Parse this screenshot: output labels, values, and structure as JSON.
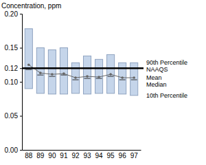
{
  "chart_data": {
    "type": "box",
    "title": "Concentration, ppm",
    "categories": [
      "88",
      "89",
      "90",
      "91",
      "92",
      "93",
      "94",
      "95",
      "96",
      "97"
    ],
    "color": "#c5d5ea",
    "series": [
      {
        "name": "90th Percentile",
        "type": "upper",
        "values": [
          0.178,
          0.15,
          0.147,
          0.15,
          0.128,
          0.138,
          0.133,
          0.14,
          0.128,
          0.128
        ]
      },
      {
        "name": "Mean",
        "type": "line",
        "color": "#666666",
        "marker": "circle",
        "values": [
          0.125,
          0.113,
          0.111,
          0.112,
          0.106,
          0.108,
          0.107,
          0.111,
          0.106,
          0.106
        ]
      },
      {
        "name": "Median",
        "type": "median",
        "color": "#333333",
        "values": [
          0.118,
          0.11,
          0.108,
          0.11,
          0.103,
          0.105,
          0.105,
          0.108,
          0.103,
          0.103
        ]
      },
      {
        "name": "10th Percentile",
        "type": "lower",
        "values": [
          0.09,
          0.083,
          0.082,
          0.082,
          0.083,
          0.082,
          0.083,
          0.083,
          0.082,
          0.08
        ]
      }
    ],
    "reference_lines": [
      {
        "value": 0.12,
        "label": "NAAQS",
        "color": "#000000"
      }
    ],
    "ylim": [
      0,
      0.2
    ],
    "yticks": [
      {
        "value": 0,
        "label": "0.00"
      },
      {
        "value": 0.05,
        "label": "0.05"
      },
      {
        "value": 0.1,
        "label": "0.10"
      },
      {
        "value": 0.12,
        "label": "0.12"
      },
      {
        "value": 0.15,
        "label": "0.15"
      },
      {
        "value": 0.2,
        "label": "0.20"
      }
    ],
    "grid": false
  }
}
